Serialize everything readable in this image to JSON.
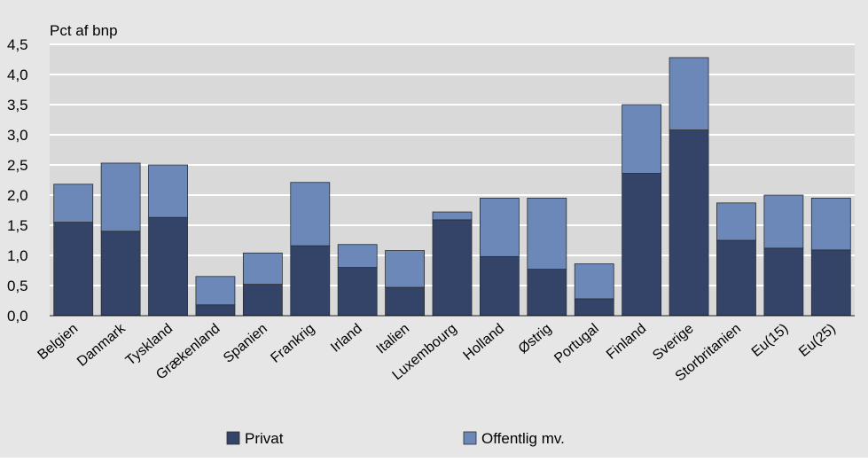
{
  "chart_data": {
    "type": "bar",
    "stacked": true,
    "ylabel": "Pct af bnp",
    "ylim": [
      0,
      4.5
    ],
    "yticks": [
      "0,0",
      "0,5",
      "1,0",
      "1,5",
      "2,0",
      "2,5",
      "3,0",
      "3,5",
      "4,0",
      "4,5"
    ],
    "grid": true,
    "legend_position": "bottom",
    "categories": [
      "Belgien",
      "Danmark",
      "Tyskland",
      "Grækenland",
      "Spanien",
      "Frankrig",
      "Irland",
      "Italien",
      "Luxembourg",
      "Holland",
      "Østrig",
      "Portugal",
      "Finland",
      "Sverige",
      "Storbritanien",
      "Eu(15)",
      "Eu(25)"
    ],
    "series": [
      {
        "name": "Privat",
        "color": "#344469",
        "values": [
          1.55,
          1.4,
          1.63,
          0.18,
          0.52,
          1.16,
          0.8,
          0.47,
          1.59,
          0.98,
          0.77,
          0.28,
          2.36,
          3.08,
          1.25,
          1.12,
          1.09
        ]
      },
      {
        "name": "Offentlig mv.",
        "color": "#6c88b8",
        "values": [
          0.63,
          1.13,
          0.87,
          0.47,
          0.52,
          1.05,
          0.38,
          0.61,
          0.13,
          0.97,
          1.18,
          0.58,
          1.14,
          1.2,
          0.62,
          0.88,
          0.86
        ]
      }
    ]
  }
}
